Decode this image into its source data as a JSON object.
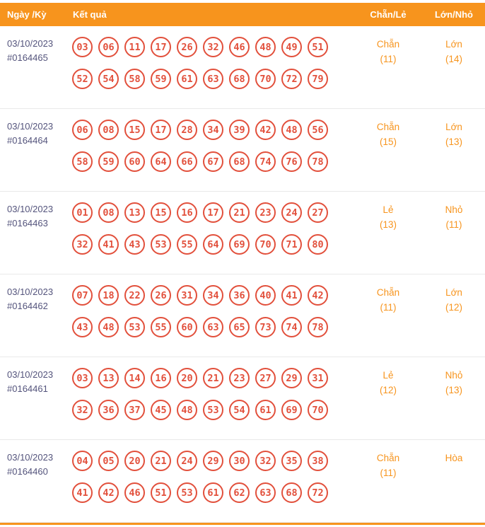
{
  "colors": {
    "header_bg": "#f7941d",
    "accent_orange": "#f7941d",
    "ball_red": "#e2503c",
    "date_purple": "#54547c"
  },
  "header": {
    "col_date": "Ngày /Kỳ",
    "col_result": "Kết quả",
    "col_even_odd": "Chẵn/Lẻ",
    "col_big_small": "Lớn/Nhỏ"
  },
  "rows": [
    {
      "date": "03/10/2023",
      "period": "#0164465",
      "numbers": [
        "03",
        "06",
        "11",
        "17",
        "26",
        "32",
        "46",
        "48",
        "49",
        "51",
        "52",
        "54",
        "58",
        "59",
        "61",
        "63",
        "68",
        "70",
        "72",
        "79"
      ],
      "even_odd": "Chẵn",
      "even_odd_count": "(11)",
      "big_small": "Lớn",
      "big_small_count": "(14)"
    },
    {
      "date": "03/10/2023",
      "period": "#0164464",
      "numbers": [
        "06",
        "08",
        "15",
        "17",
        "28",
        "34",
        "39",
        "42",
        "48",
        "56",
        "58",
        "59",
        "60",
        "64",
        "66",
        "67",
        "68",
        "74",
        "76",
        "78"
      ],
      "even_odd": "Chẵn",
      "even_odd_count": "(15)",
      "big_small": "Lớn",
      "big_small_count": "(13)"
    },
    {
      "date": "03/10/2023",
      "period": "#0164463",
      "numbers": [
        "01",
        "08",
        "13",
        "15",
        "16",
        "17",
        "21",
        "23",
        "24",
        "27",
        "32",
        "41",
        "43",
        "53",
        "55",
        "64",
        "69",
        "70",
        "71",
        "80"
      ],
      "even_odd": "Lẻ",
      "even_odd_count": "(13)",
      "big_small": "Nhỏ",
      "big_small_count": "(11)"
    },
    {
      "date": "03/10/2023",
      "period": "#0164462",
      "numbers": [
        "07",
        "18",
        "22",
        "26",
        "31",
        "34",
        "36",
        "40",
        "41",
        "42",
        "43",
        "48",
        "53",
        "55",
        "60",
        "63",
        "65",
        "73",
        "74",
        "78"
      ],
      "even_odd": "Chẵn",
      "even_odd_count": "(11)",
      "big_small": "Lớn",
      "big_small_count": "(12)"
    },
    {
      "date": "03/10/2023",
      "period": "#0164461",
      "numbers": [
        "03",
        "13",
        "14",
        "16",
        "20",
        "21",
        "23",
        "27",
        "29",
        "31",
        "32",
        "36",
        "37",
        "45",
        "48",
        "53",
        "54",
        "61",
        "69",
        "70"
      ],
      "even_odd": "Lẻ",
      "even_odd_count": "(12)",
      "big_small": "Nhỏ",
      "big_small_count": "(13)"
    },
    {
      "date": "03/10/2023",
      "period": "#0164460",
      "numbers": [
        "04",
        "05",
        "20",
        "21",
        "24",
        "29",
        "30",
        "32",
        "35",
        "38",
        "41",
        "42",
        "46",
        "51",
        "53",
        "61",
        "62",
        "63",
        "68",
        "72"
      ],
      "even_odd": "Chẵn",
      "even_odd_count": "(11)",
      "big_small": "Hòa",
      "big_small_count": ""
    }
  ]
}
